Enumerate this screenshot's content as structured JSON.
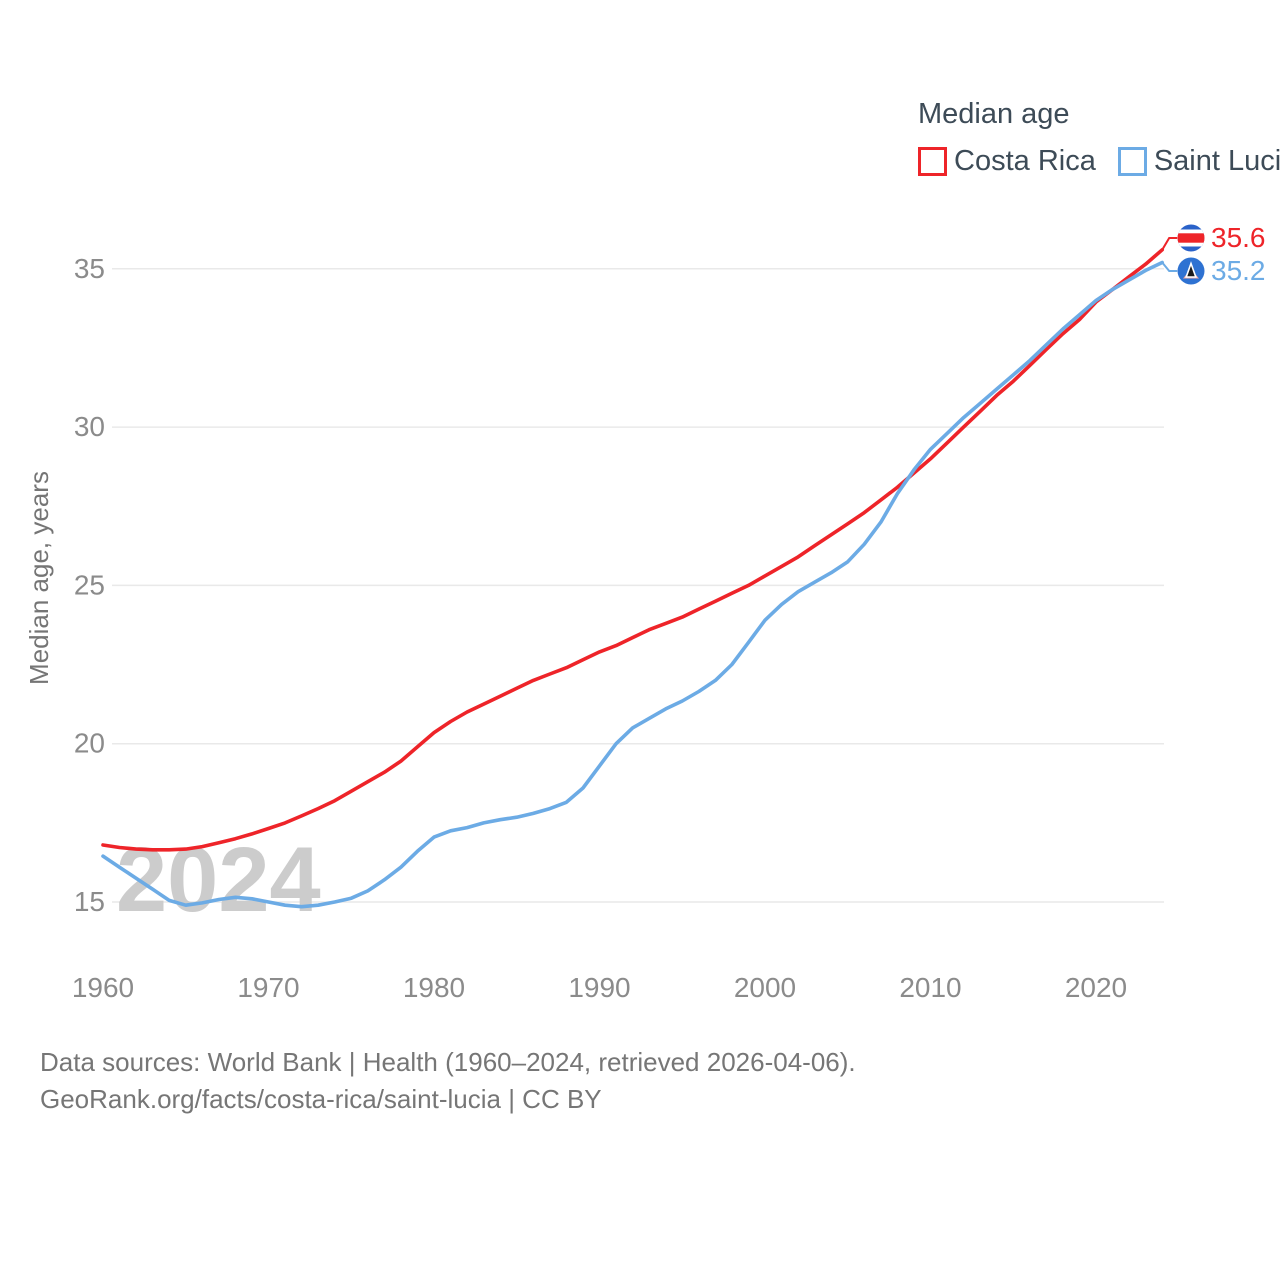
{
  "legend": {
    "title": "Median age",
    "items": [
      {
        "label": "Costa Rica",
        "color": "#ee2429"
      },
      {
        "label": "Saint Lucia",
        "color": "#6cabe5"
      }
    ]
  },
  "watermark": "2024",
  "source": {
    "line1": "Data sources: World Bank | Health (1960–2024, retrieved 2026-04-06).",
    "line2": "GeoRank.org/facts/costa-rica/saint-lucia | CC BY"
  },
  "chart_data": {
    "type": "line",
    "title": "Median age",
    "ylabel": "Median age, years",
    "xlabel": "",
    "grid": "horizontal",
    "legend_position": "top-right",
    "xlim": [
      1960,
      2024
    ],
    "ylim": [
      13.6,
      37
    ],
    "xticks": [
      1960,
      1970,
      1980,
      1990,
      2000,
      2010,
      2020
    ],
    "yticks": [
      15,
      20,
      25,
      30,
      35
    ],
    "x": [
      1960,
      1961,
      1962,
      1963,
      1964,
      1965,
      1966,
      1967,
      1968,
      1969,
      1970,
      1971,
      1972,
      1973,
      1974,
      1975,
      1976,
      1977,
      1978,
      1979,
      1980,
      1981,
      1982,
      1983,
      1984,
      1985,
      1986,
      1987,
      1988,
      1989,
      1990,
      1991,
      1992,
      1993,
      1994,
      1995,
      1996,
      1997,
      1998,
      1999,
      2000,
      2001,
      2002,
      2003,
      2004,
      2005,
      2006,
      2007,
      2008,
      2009,
      2010,
      2011,
      2012,
      2013,
      2014,
      2015,
      2016,
      2017,
      2018,
      2019,
      2020,
      2021,
      2022,
      2023,
      2024
    ],
    "series": [
      {
        "name": "Costa Rica",
        "color": "#ee2429",
        "end_label": "35.6",
        "flag": "costa-rica",
        "values": [
          16.8,
          16.72,
          16.67,
          16.65,
          16.65,
          16.67,
          16.75,
          16.87,
          17.0,
          17.15,
          17.32,
          17.5,
          17.72,
          17.95,
          18.2,
          18.5,
          18.8,
          19.1,
          19.45,
          19.9,
          20.35,
          20.7,
          21.0,
          21.25,
          21.5,
          21.75,
          22.0,
          22.2,
          22.4,
          22.65,
          22.9,
          23.1,
          23.35,
          23.6,
          23.8,
          24.0,
          24.25,
          24.5,
          24.75,
          25.0,
          25.3,
          25.6,
          25.9,
          26.25,
          26.6,
          26.95,
          27.3,
          27.7,
          28.1,
          28.55,
          29.0,
          29.5,
          30.0,
          30.5,
          31.0,
          31.45,
          31.95,
          32.45,
          32.95,
          33.4,
          33.95,
          34.35,
          34.75,
          35.15,
          35.6
        ]
      },
      {
        "name": "Saint Lucia",
        "color": "#6cabe5",
        "end_label": "35.2",
        "flag": "saint-lucia",
        "values": [
          16.45,
          16.1,
          15.75,
          15.4,
          15.05,
          14.9,
          14.97,
          15.08,
          15.15,
          15.1,
          15.0,
          14.9,
          14.85,
          14.9,
          15.0,
          15.12,
          15.35,
          15.7,
          16.1,
          16.6,
          17.05,
          17.25,
          17.35,
          17.5,
          17.6,
          17.68,
          17.8,
          17.95,
          18.15,
          18.6,
          19.3,
          20.0,
          20.5,
          20.8,
          21.1,
          21.35,
          21.65,
          22.0,
          22.5,
          23.2,
          23.9,
          24.4,
          24.8,
          25.1,
          25.4,
          25.75,
          26.3,
          27.0,
          27.9,
          28.65,
          29.3,
          29.8,
          30.3,
          30.75,
          31.2,
          31.65,
          32.1,
          32.6,
          33.1,
          33.55,
          34.0,
          34.35,
          34.65,
          34.95,
          35.2
        ]
      }
    ]
  }
}
